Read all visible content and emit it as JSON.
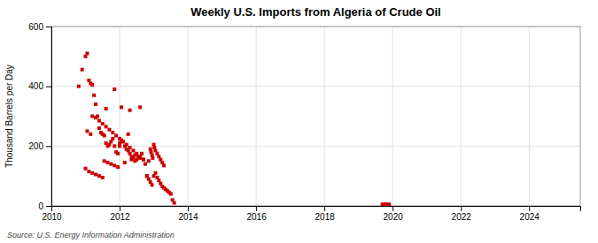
{
  "chart_data": {
    "type": "scatter",
    "title": "Weekly U.S. Imports from Algeria of Crude Oil",
    "ylabel": "Thousand Barrels per Day",
    "annotations": [
      "Source: U.S. Energy Information Administration"
    ],
    "color": "#cc0000",
    "marker": "square",
    "grid": true,
    "xlim": [
      2010,
      2025.5
    ],
    "ylim": [
      0,
      600
    ],
    "yticks": [
      0,
      200,
      400,
      600
    ],
    "xticks": [
      2010,
      2012,
      2014,
      2016,
      2018,
      2020,
      2022,
      2024
    ],
    "x": [
      2010.8,
      2010.9,
      2011.0,
      2011.05,
      2011.1,
      2011.15,
      2011.2,
      2011.25,
      2011.3,
      2011.35,
      2011.4,
      2011.45,
      2011.5,
      2011.55,
      2011.6,
      2011.65,
      2011.7,
      2011.75,
      2011.8,
      2011.85,
      2011.9,
      2011.95,
      2012.0,
      2012.05,
      2012.1,
      2012.15,
      2012.2,
      2012.25,
      2012.3,
      2012.35,
      2012.4,
      2012.45,
      2012.5,
      2012.55,
      2012.6,
      2012.65,
      2012.7,
      2012.75,
      2012.8,
      2012.85,
      2012.9,
      2012.95,
      2013.0,
      2013.05,
      2013.1,
      2013.15,
      2013.2,
      2013.25,
      2013.3,
      2013.35,
      2013.4,
      2013.45,
      2013.5,
      2013.55,
      2013.6,
      2011.2,
      2011.3,
      2011.4,
      2011.5,
      2011.6,
      2011.7,
      2011.8,
      2011.9,
      2012.0,
      2012.1,
      2012.2,
      2012.3,
      2012.4,
      2012.5,
      2012.6,
      2012.7,
      2011.05,
      2011.15,
      2011.6,
      2011.85,
      2012.05,
      2012.3,
      2012.6,
      2012.8,
      2012.85,
      2012.9,
      2012.92,
      2012.95,
      2012.97,
      2013.0,
      2013.02,
      2013.05,
      2013.1,
      2013.15,
      2013.2,
      2013.25,
      2013.3,
      2019.7,
      2019.75,
      2019.8,
      2019.85,
      2019.9,
      2011.0,
      2011.1,
      2011.2,
      2011.3,
      2011.4,
      2011.5,
      2011.55,
      2011.65,
      2011.75,
      2011.85,
      2011.95,
      2012.0,
      2012.15,
      2012.25,
      2012.35,
      2012.45
    ],
    "values": [
      400,
      456,
      500,
      510,
      420,
      410,
      405,
      370,
      340,
      300,
      260,
      245,
      240,
      235,
      210,
      200,
      205,
      215,
      225,
      200,
      180,
      175,
      210,
      220,
      215,
      200,
      190,
      185,
      175,
      165,
      160,
      150,
      155,
      165,
      160,
      175,
      155,
      140,
      100,
      90,
      80,
      70,
      100,
      110,
      95,
      85,
      75,
      65,
      60,
      55,
      50,
      45,
      40,
      20,
      10,
      300,
      295,
      285,
      275,
      265,
      255,
      245,
      235,
      225,
      215,
      205,
      195,
      185,
      175,
      165,
      155,
      250,
      240,
      325,
      390,
      330,
      320,
      330,
      100,
      150,
      190,
      180,
      170,
      160,
      205,
      195,
      185,
      175,
      165,
      155,
      145,
      135,
      5,
      5,
      5,
      5,
      5,
      125,
      115,
      110,
      105,
      100,
      95,
      150,
      145,
      140,
      135,
      130,
      200,
      145,
      240,
      155,
      170
    ]
  }
}
